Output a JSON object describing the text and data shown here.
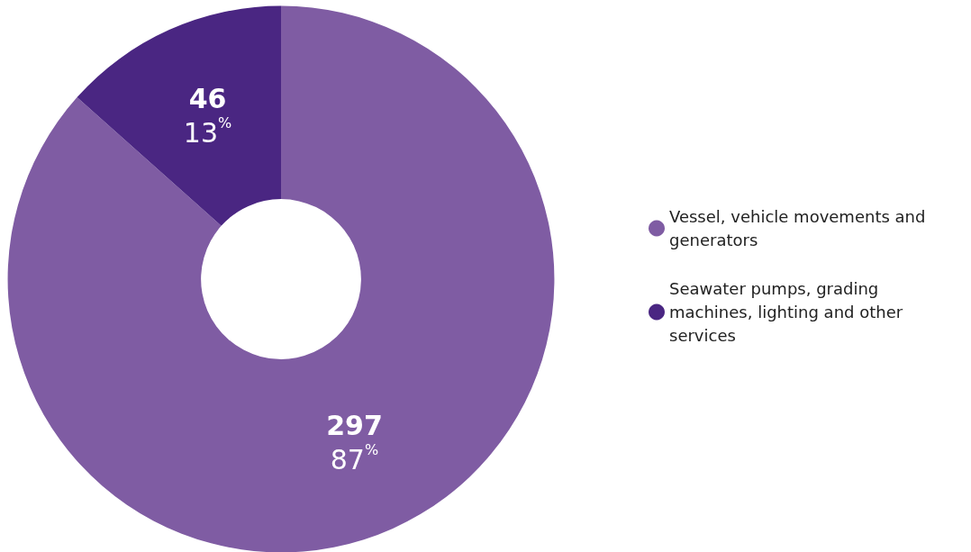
{
  "chart_data": {
    "type": "donut",
    "categories": [
      "Vessel, vehicle movements and generators",
      "Seawater pumps, grading machines, lighting and other services"
    ],
    "values": [
      297,
      46
    ],
    "colors": [
      "#7f5ca3",
      "#4a2682"
    ],
    "value_labels": [
      "297 87$^{%}$",
      "46 13$^{%}$"
    ],
    "legend": "right"
  }
}
